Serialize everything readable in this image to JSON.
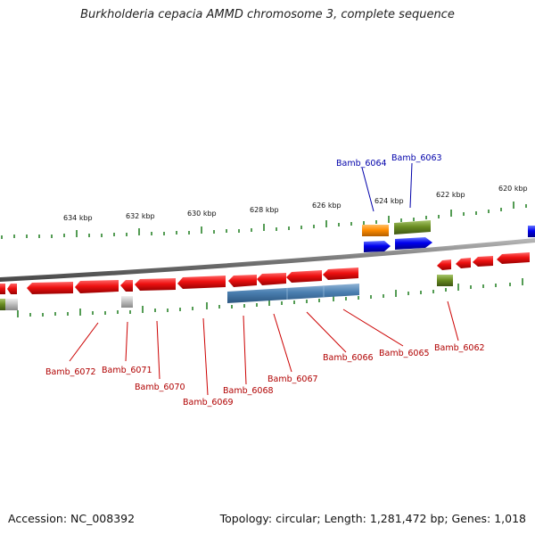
{
  "title": "Burkholderia cepacia AMMD chromosome 3, complete sequence",
  "footer": {
    "accession": "Accession: NC_008392",
    "stats": "Topology: circular; Length: 1,281,472 bp; Genes: 1,018"
  },
  "scale_labels": [
    "634 kbp",
    "632 kbp",
    "630 kbp",
    "628 kbp",
    "626 kbp",
    "624 kbp",
    "622 kbp",
    "620 kbp"
  ],
  "gene_labels": {
    "top": [
      "Bamb_6064",
      "Bamb_6063"
    ],
    "bottom": [
      "Bamb_6072",
      "Bamb_6071",
      "Bamb_6070",
      "Bamb_6069",
      "Bamb_6068",
      "Bamb_6067",
      "Bamb_6066",
      "Bamb_6065",
      "Bamb_6062"
    ]
  },
  "colors": {
    "cds": "#ee1111",
    "rna": "#4a7fb0",
    "misc_green": "#6b8e23",
    "misc_orange": "#ff8c00",
    "gene_blue": "#0000ee",
    "grey": "#aaaaaa",
    "tick": "#1a7a1a",
    "backbone": "#777777"
  }
}
